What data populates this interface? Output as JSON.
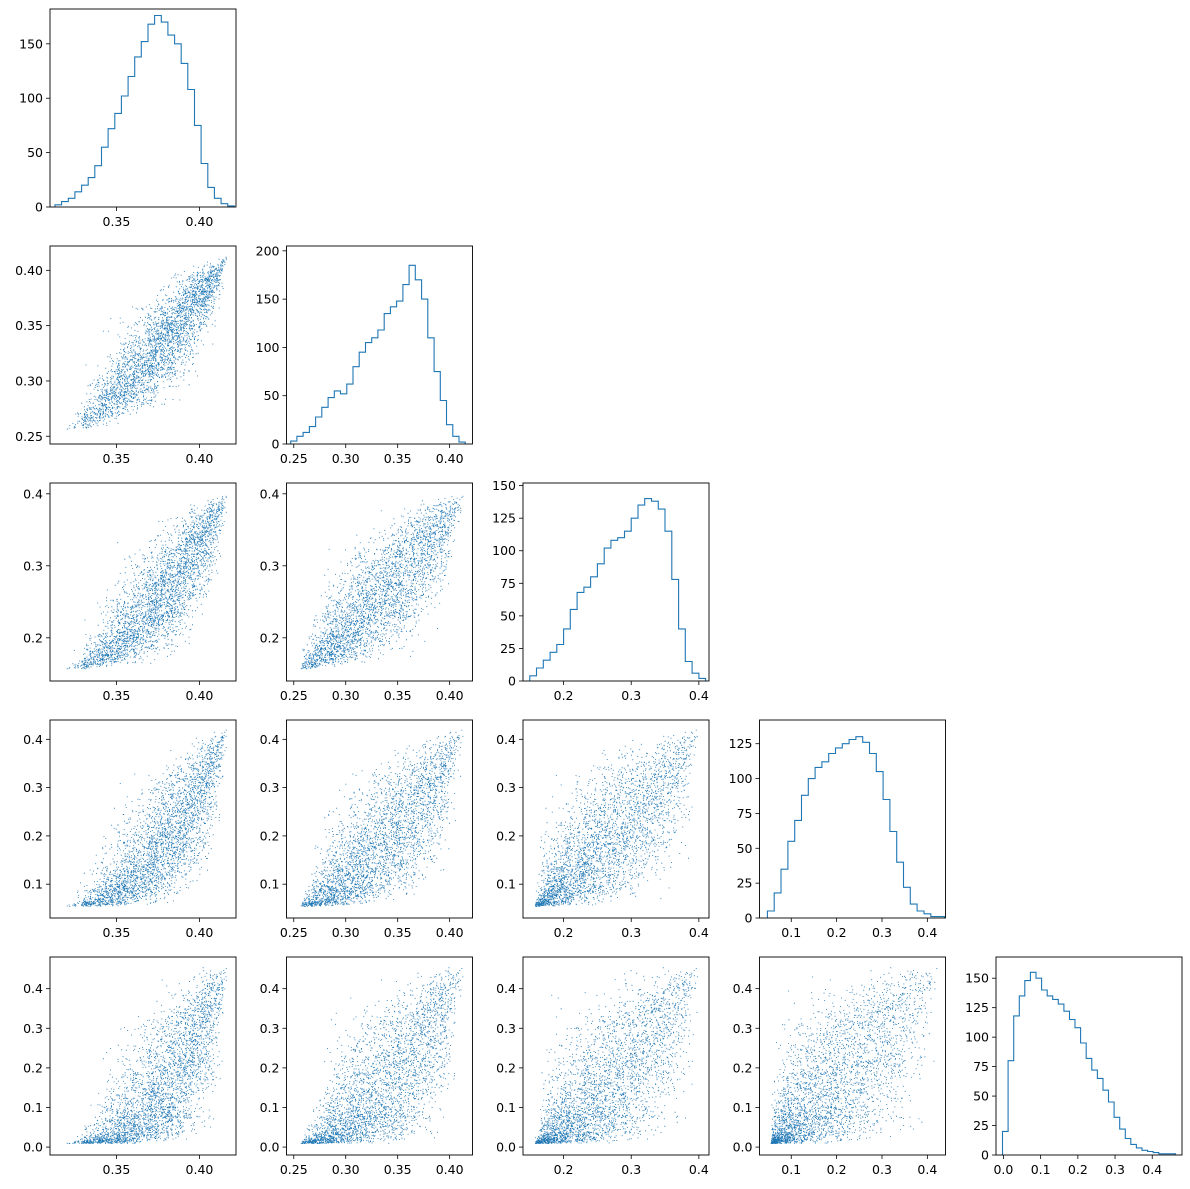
{
  "chart_data": {
    "type": "corner",
    "description_of_layout": "lower-triangular 5x5 grid: histograms on diagonal, scatter plots below",
    "colors": {
      "series": "#1f77b4",
      "axes": "#000000",
      "background": "#ffffff"
    },
    "variables": [
      {
        "ticks": [
          0.35,
          0.4
        ],
        "tick_labels": [
          "0.35",
          "0.40"
        ],
        "range": [
          0.31,
          0.422
        ],
        "tail_low": 3.0,
        "tail_high": 2.2,
        "hist": {
          "ylim": [
            0,
            182
          ],
          "yticks": [
            0,
            50,
            100,
            150
          ],
          "ytick_labels": [
            "0",
            "50",
            "100",
            "150"
          ],
          "x": [
            0.315,
            0.319,
            0.323,
            0.327,
            0.331,
            0.335,
            0.339,
            0.343,
            0.347,
            0.351,
            0.355,
            0.359,
            0.363,
            0.367,
            0.371,
            0.375,
            0.379,
            0.383,
            0.387,
            0.391,
            0.395,
            0.399,
            0.403,
            0.407,
            0.411,
            0.415,
            0.419
          ],
          "counts": [
            2,
            5,
            8,
            14,
            20,
            27,
            38,
            55,
            72,
            86,
            102,
            120,
            138,
            152,
            168,
            176,
            170,
            158,
            150,
            132,
            108,
            75,
            40,
            18,
            8,
            3,
            1
          ]
        }
      },
      {
        "ticks": [
          0.25,
          0.3,
          0.35,
          0.4
        ],
        "tick_labels": [
          "0.25",
          "0.30",
          "0.35",
          "0.40"
        ],
        "range": [
          0.243,
          0.422
        ],
        "tail_low": 3.0,
        "tail_high": 2.5,
        "hist": {
          "ylim": [
            0,
            205
          ],
          "yticks": [
            0,
            50,
            100,
            150,
            200
          ],
          "ytick_labels": [
            "0",
            "50",
            "100",
            "150",
            "200"
          ],
          "x": [
            0.25,
            0.256,
            0.262,
            0.268,
            0.274,
            0.28,
            0.286,
            0.292,
            0.298,
            0.304,
            0.31,
            0.316,
            0.322,
            0.328,
            0.334,
            0.34,
            0.346,
            0.352,
            0.358,
            0.364,
            0.37,
            0.376,
            0.382,
            0.388,
            0.394,
            0.4,
            0.406,
            0.412
          ],
          "counts": [
            3,
            8,
            12,
            18,
            28,
            38,
            48,
            55,
            52,
            62,
            80,
            95,
            105,
            110,
            118,
            135,
            142,
            148,
            165,
            185,
            170,
            150,
            110,
            75,
            45,
            20,
            8,
            2
          ]
        }
      },
      {
        "ticks": [
          0.2,
          0.3,
          0.4
        ],
        "tick_labels": [
          "0.2",
          "0.3",
          "0.4"
        ],
        "range": [
          0.14,
          0.415
        ],
        "tail_low": 2.8,
        "tail_high": 2.8,
        "hist": {
          "ylim": [
            0,
            152
          ],
          "yticks": [
            0,
            25,
            50,
            75,
            100,
            125,
            150
          ],
          "ytick_labels": [
            "0",
            "25",
            "50",
            "75",
            "100",
            "125",
            "150"
          ],
          "x": [
            0.155,
            0.165,
            0.175,
            0.185,
            0.195,
            0.205,
            0.215,
            0.225,
            0.235,
            0.245,
            0.255,
            0.265,
            0.275,
            0.285,
            0.295,
            0.305,
            0.315,
            0.325,
            0.335,
            0.345,
            0.355,
            0.365,
            0.375,
            0.385,
            0.395,
            0.405
          ],
          "counts": [
            4,
            10,
            16,
            22,
            28,
            40,
            55,
            68,
            72,
            80,
            90,
            102,
            108,
            110,
            115,
            125,
            135,
            140,
            138,
            132,
            115,
            78,
            40,
            15,
            6,
            2
          ]
        }
      },
      {
        "ticks": [
          0.1,
          0.2,
          0.3,
          0.4
        ],
        "tick_labels": [
          "0.1",
          "0.2",
          "0.3",
          "0.4"
        ],
        "range": [
          0.03,
          0.44
        ],
        "tail_low": 2.6,
        "tail_high": 3.0,
        "hist": {
          "ylim": [
            0,
            142
          ],
          "yticks": [
            0,
            25,
            50,
            75,
            100,
            125
          ],
          "ytick_labels": [
            "0",
            "25",
            "50",
            "75",
            "100",
            "125"
          ],
          "x": [
            0.055,
            0.07,
            0.085,
            0.1,
            0.115,
            0.13,
            0.145,
            0.16,
            0.175,
            0.19,
            0.205,
            0.22,
            0.235,
            0.25,
            0.265,
            0.28,
            0.295,
            0.31,
            0.325,
            0.34,
            0.355,
            0.37,
            0.385,
            0.4,
            0.415,
            0.43
          ],
          "counts": [
            5,
            18,
            35,
            55,
            70,
            88,
            100,
            108,
            112,
            118,
            122,
            125,
            128,
            130,
            126,
            118,
            105,
            85,
            62,
            40,
            22,
            10,
            5,
            3,
            1,
            1
          ]
        }
      },
      {
        "ticks": [
          0.0,
          0.1,
          0.2,
          0.3,
          0.4
        ],
        "tick_labels": [
          "0.0",
          "0.1",
          "0.2",
          "0.3",
          "0.4"
        ],
        "range": [
          -0.02,
          0.48
        ],
        "tail_low": 2.5,
        "tail_high": 3.2,
        "hist": {
          "ylim": [
            0,
            168
          ],
          "yticks": [
            0,
            25,
            50,
            75,
            100,
            125,
            150
          ],
          "ytick_labels": [
            "0",
            "25",
            "50",
            "75",
            "100",
            "125",
            "150"
          ],
          "x": [
            0.005,
            0.02,
            0.035,
            0.05,
            0.065,
            0.08,
            0.095,
            0.11,
            0.125,
            0.14,
            0.155,
            0.17,
            0.185,
            0.2,
            0.215,
            0.23,
            0.245,
            0.26,
            0.275,
            0.29,
            0.305,
            0.32,
            0.335,
            0.35,
            0.365,
            0.38,
            0.395,
            0.41,
            0.425,
            0.44,
            0.455
          ],
          "counts": [
            20,
            80,
            118,
            135,
            148,
            155,
            150,
            140,
            135,
            132,
            128,
            122,
            115,
            108,
            95,
            82,
            72,
            65,
            55,
            45,
            32,
            22,
            14,
            9,
            6,
            4,
            3,
            2,
            1,
            1,
            1
          ]
        }
      }
    ],
    "scatter": {
      "n_points": 3200,
      "lower_triangle": true
    }
  }
}
